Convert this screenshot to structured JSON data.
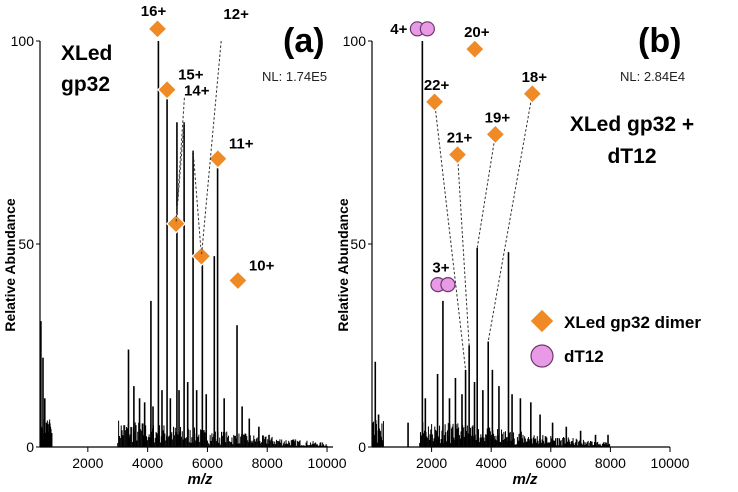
{
  "legend": {
    "dimer_label": "XLed gp32 dimer",
    "dimer_color": "#f08a24",
    "dt12_label": "dT12",
    "dt12_color": "#e89ae6"
  },
  "chart_data": [
    {
      "type": "bar",
      "panel_label": "(a)",
      "sample_label": [
        "XLed",
        "gp32"
      ],
      "nl_text": "NL: 1.74E5",
      "ylabel": "Relative Abundance",
      "xlabel": "m/z",
      "xlim": [
        400,
        10200
      ],
      "ylim": [
        0,
        100
      ],
      "xticks": [
        2000,
        4000,
        6000,
        8000,
        10000
      ],
      "xtick_labels": [
        "2000",
        "4000",
        "6000",
        "8000",
        "10000"
      ],
      "yticks": [
        0,
        50,
        100
      ],
      "ytick_labels": [
        "0",
        "50",
        "100"
      ],
      "peaks": [
        {
          "x": 430,
          "y": 31
        },
        {
          "x": 500,
          "y": 22
        },
        {
          "x": 560,
          "y": 12
        },
        {
          "x": 620,
          "y": 6
        },
        {
          "x": 3360,
          "y": 24
        },
        {
          "x": 3540,
          "y": 15
        },
        {
          "x": 3730,
          "y": 12
        },
        {
          "x": 3900,
          "y": 11
        },
        {
          "x": 4110,
          "y": 36
        },
        {
          "x": 4180,
          "y": 10
        },
        {
          "x": 4360,
          "y": 100
        },
        {
          "x": 4480,
          "y": 14
        },
        {
          "x": 4650,
          "y": 89
        },
        {
          "x": 4760,
          "y": 12
        },
        {
          "x": 4980,
          "y": 80
        },
        {
          "x": 5050,
          "y": 14
        },
        {
          "x": 5220,
          "y": 80
        },
        {
          "x": 5340,
          "y": 16
        },
        {
          "x": 5520,
          "y": 73
        },
        {
          "x": 5640,
          "y": 14
        },
        {
          "x": 5830,
          "y": 49
        },
        {
          "x": 5960,
          "y": 13
        },
        {
          "x": 6230,
          "y": 47
        },
        {
          "x": 6340,
          "y": 69
        },
        {
          "x": 6560,
          "y": 12
        },
        {
          "x": 6990,
          "y": 30
        },
        {
          "x": 7160,
          "y": 10
        },
        {
          "x": 7400,
          "y": 7
        },
        {
          "x": 7720,
          "y": 5
        },
        {
          "x": 8060,
          "y": 3
        }
      ],
      "markers": [
        {
          "kind": "dimer",
          "label": "16+",
          "x": 4330,
          "y": 103
        },
        {
          "kind": "dimer",
          "label": "15+",
          "x": 4650,
          "y": 88
        },
        {
          "kind": "dimer",
          "label": "14+",
          "x": 4950,
          "y": 55
        },
        {
          "kind": "dimer",
          "label": "12+",
          "x": 5800,
          "y": 47
        },
        {
          "kind": "dimer",
          "label": "11+",
          "x": 6350,
          "y": 71
        },
        {
          "kind": "dimer",
          "label": "10+",
          "x": 7020,
          "y": 41
        }
      ]
    },
    {
      "type": "bar",
      "panel_label": "(b)",
      "sample_label": [
        "XLed gp32 +",
        "dT12"
      ],
      "nl_text": "NL: 2.84E4",
      "ylabel": "Relative Abundance",
      "xlabel": "m/z",
      "xlim": [
        0,
        10000
      ],
      "ylim": [
        0,
        100
      ],
      "xticks": [
        2000,
        4000,
        6000,
        8000,
        10000
      ],
      "xtick_labels": [
        "2000",
        "4000",
        "6000",
        "8000",
        "10000"
      ],
      "yticks": [
        0,
        50,
        100
      ],
      "ytick_labels": [
        "0",
        "50",
        "100"
      ],
      "peaks": [
        {
          "x": 110,
          "y": 21
        },
        {
          "x": 220,
          "y": 8
        },
        {
          "x": 1210,
          "y": 6
        },
        {
          "x": 1690,
          "y": 100
        },
        {
          "x": 1790,
          "y": 12
        },
        {
          "x": 2200,
          "y": 18
        },
        {
          "x": 2380,
          "y": 36
        },
        {
          "x": 2600,
          "y": 12
        },
        {
          "x": 2800,
          "y": 17
        },
        {
          "x": 3020,
          "y": 13
        },
        {
          "x": 3140,
          "y": 19
        },
        {
          "x": 3260,
          "y": 25
        },
        {
          "x": 3440,
          "y": 16
        },
        {
          "x": 3530,
          "y": 49
        },
        {
          "x": 3720,
          "y": 14
        },
        {
          "x": 3900,
          "y": 26
        },
        {
          "x": 4040,
          "y": 19
        },
        {
          "x": 4260,
          "y": 15
        },
        {
          "x": 4580,
          "y": 48
        },
        {
          "x": 4700,
          "y": 13
        },
        {
          "x": 4980,
          "y": 12
        },
        {
          "x": 5330,
          "y": 11
        },
        {
          "x": 5640,
          "y": 8
        },
        {
          "x": 6060,
          "y": 6
        },
        {
          "x": 6520,
          "y": 5
        },
        {
          "x": 7000,
          "y": 4
        },
        {
          "x": 7500,
          "y": 3
        },
        {
          "x": 7920,
          "y": 3
        }
      ],
      "markers": [
        {
          "kind": "dT12",
          "label": "4+",
          "x": 1690,
          "y": 103
        },
        {
          "kind": "dimer",
          "label": "20+",
          "x": 3450,
          "y": 98
        },
        {
          "kind": "dimer",
          "label": "22+",
          "x": 2100,
          "y": 85
        },
        {
          "kind": "dimer",
          "label": "18+",
          "x": 5380,
          "y": 87
        },
        {
          "kind": "dimer",
          "label": "21+",
          "x": 2870,
          "y": 72
        },
        {
          "kind": "dimer",
          "label": "19+",
          "x": 4140,
          "y": 77
        },
        {
          "kind": "dT12",
          "label": "3+",
          "x": 2380,
          "y": 40
        }
      ]
    }
  ]
}
